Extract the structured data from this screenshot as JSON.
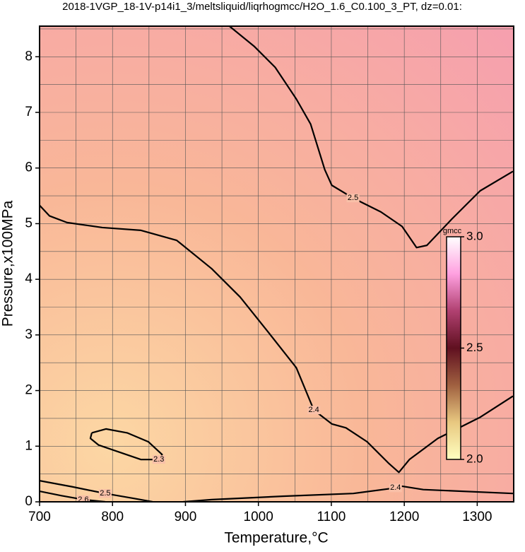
{
  "chart_data": {
    "type": "contour",
    "title": "2018-1VGP_18-1V-p14i1_3/meltsliquid/liqrhogmcc/H2O_1.6_C0.100_3_PT, dz=0.01:",
    "x_label": "Temperature,°C",
    "y_label": "Pressure,x100MPa",
    "xlim": [
      700,
      1350
    ],
    "ylim": [
      0,
      8.55
    ],
    "xticks": [
      700,
      800,
      900,
      1000,
      1100,
      1200,
      1300
    ],
    "yticks": [
      0,
      1,
      2,
      3,
      4,
      5,
      6,
      7,
      8
    ],
    "xgrid": [
      750,
      800,
      850,
      900,
      950,
      1000,
      1050,
      1100,
      1150,
      1200,
      1250,
      1300
    ],
    "ygrid": [
      0.5,
      1,
      1.5,
      2,
      2.5,
      3,
      3.5,
      4,
      4.5,
      5,
      5.5,
      6,
      6.5,
      7,
      7.5,
      8,
      8.5
    ],
    "grid": true,
    "contours": [
      {
        "level": 2.3,
        "x": [
          771.6,
          791,
          820,
          849,
          868,
          863.5,
          839,
          810,
          781,
          769.7,
          771.6
        ],
        "y": [
          1.24,
          1.31,
          1.24,
          1.08,
          0.85,
          0.76,
          0.76,
          0.89,
          1.02,
          1.14,
          1.24
        ]
      },
      {
        "level": 2.4,
        "x": [
          700,
          713.5,
          737.7,
          786,
          839,
          888,
          936,
          975,
          1013.5,
          1052,
          1076,
          1100.6,
          1120,
          1149,
          1178,
          1192.6,
          1207,
          1246,
          1304,
          1349
        ],
        "y": [
          5.33,
          5.14,
          5.02,
          4.93,
          4.88,
          4.7,
          4.19,
          3.68,
          3.05,
          2.41,
          1.65,
          1.4,
          1.33,
          1.08,
          0.7,
          0.53,
          0.76,
          1.14,
          1.52,
          1.9
        ]
      },
      {
        "level": 2.5,
        "x": [
          960.3,
          994,
          1023,
          1052,
          1071.6,
          1091,
          1100.6,
          1129.7,
          1168,
          1197,
          1216.8,
          1231,
          1265,
          1304,
          1349
        ],
        "y": [
          8.55,
          8.19,
          7.81,
          7.24,
          6.79,
          5.97,
          5.69,
          5.46,
          5.21,
          4.95,
          4.57,
          4.61,
          5.08,
          5.59,
          5.94
        ]
      },
      {
        "level": 2.4,
        "x": [
          897,
          936,
          1033,
          1130,
          1188,
          1197,
          1226,
          1349
        ],
        "y": [
          0,
          0.04,
          0.1,
          0.15,
          0.25,
          0.28,
          0.22,
          0.15
        ]
      },
      {
        "level": 2.5,
        "x": [
          700,
          745,
          790,
          830,
          855
        ],
        "y": [
          0.38,
          0.27,
          0.15,
          0.06,
          0
        ]
      },
      {
        "level": 2.6,
        "x": [
          700,
          730,
          760,
          790
        ],
        "y": [
          0.19,
          0.11,
          0.04,
          0
        ]
      }
    ],
    "colorbar": {
      "label": "gmcc",
      "lim": [
        2,
        3
      ],
      "ticks": [
        {
          "value": 2,
          "label": "2.0"
        },
        2.5,
        {
          "value": 3,
          "label": "3.0"
        }
      ],
      "colors": [
        "#ffffc0",
        "#e8c880",
        "#a06040",
        "#601020",
        "#b04070",
        "#ffa0e0",
        "#ffffff"
      ]
    }
  }
}
